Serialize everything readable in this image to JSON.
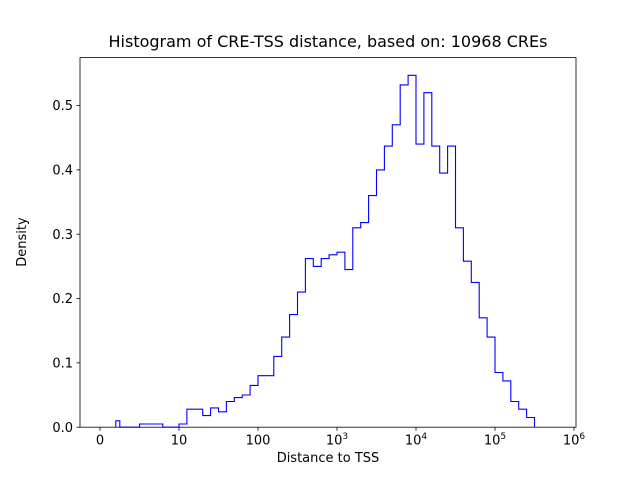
{
  "title": "Histogram of CRE-TSS distance, based on: 10968 CREs",
  "chart_data": {
    "type": "bar",
    "subtype": "step-histogram",
    "title": "Histogram of CRE-TSS distance, based on: 10968 CREs",
    "xlabel": "Distance to TSS",
    "ylabel": "Density",
    "x_scale": "symlog",
    "x_linthresh": 10,
    "xlim": [
      0,
      1000000
    ],
    "ylim": [
      0,
      0.5745
    ],
    "grid": false,
    "legend": "none",
    "line_color": "#0000ff",
    "xtick_values": [
      0,
      10,
      100,
      1000,
      10000,
      100000,
      1000000
    ],
    "xtick_labels": [
      "0",
      "10",
      "100",
      "10^3",
      "10^4",
      "10^5",
      "10^6"
    ],
    "ytick_values": [
      0.0,
      0.1,
      0.2,
      0.3,
      0.4,
      0.5
    ],
    "ytick_labels": [
      "0.0",
      "0.1",
      "0.2",
      "0.3",
      "0.4",
      "0.5"
    ],
    "bin_edges_log10": [
      0.3,
      0.4,
      0.5,
      0.6,
      0.7,
      0.8,
      0.9,
      1.0,
      1.1,
      1.2,
      1.3,
      1.4,
      1.5,
      1.6,
      1.7,
      1.8,
      1.9,
      2.0,
      2.1,
      2.2,
      2.3,
      2.4,
      2.5,
      2.6,
      2.7,
      2.8,
      2.9,
      3.0,
      3.1,
      3.2,
      3.3,
      3.4,
      3.5,
      3.6,
      3.7,
      3.8,
      3.9,
      4.0,
      4.1,
      4.2,
      4.3,
      4.4,
      4.5,
      4.6,
      4.7,
      4.8,
      4.9,
      5.0,
      5.1,
      5.2,
      5.3,
      5.4,
      5.5
    ],
    "densities": [
      0.01,
      0,
      0,
      0,
      0.005,
      0.005,
      0,
      0.005,
      0.028,
      0.028,
      0.018,
      0.03,
      0.024,
      0.04,
      0.046,
      0.05,
      0.065,
      0.08,
      0.08,
      0.11,
      0.14,
      0.175,
      0.21,
      0.262,
      0.25,
      0.262,
      0.268,
      0.272,
      0.245,
      0.31,
      0.318,
      0.36,
      0.4,
      0.437,
      0.47,
      0.532,
      0.547,
      0.44,
      0.52,
      0.437,
      0.395,
      0.437,
      0.31,
      0.258,
      0.225,
      0.17,
      0.14,
      0.085,
      0.072,
      0.04,
      0.028,
      0.015
    ]
  }
}
